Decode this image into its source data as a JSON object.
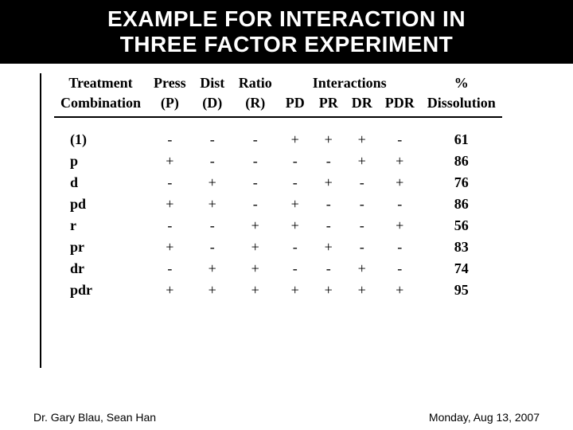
{
  "colors": {
    "title_bg": "#000000",
    "title_fg": "#ffffff",
    "page_bg": "#ffffff",
    "rule": "#000000",
    "text": "#000000"
  },
  "typography": {
    "title_font": "Arial",
    "title_size_pt": 22,
    "header_font": "Times New Roman",
    "header_size_pt": 14,
    "body_font": "Times New Roman",
    "body_size_pt": 14,
    "footer_font": "Arial",
    "footer_size_pt": 10
  },
  "title": {
    "line1": "EXAMPLE FOR INTERACTION IN",
    "line2": "THREE FACTOR EXPERIMENT"
  },
  "table": {
    "type": "table",
    "header_row1": {
      "treatment": "Treatment",
      "press": "Press",
      "dist": "Dist",
      "ratio": "Ratio",
      "interactions": "Interactions",
      "pct": "%"
    },
    "header_row2": {
      "combination": "Combination",
      "P": "(P)",
      "D": "(D)",
      "R": "(R)",
      "PD": "PD",
      "PR": "PR",
      "DR": "DR",
      "PDR": "PDR",
      "diss": "Dissolution"
    },
    "rows": [
      {
        "label": "(1)",
        "P": "-",
        "D": "-",
        "R": "-",
        "PD": "+",
        "PR": "+",
        "DR": "+",
        "PDR": "-",
        "val": "61"
      },
      {
        "label": "p",
        "P": "+",
        "D": "-",
        "R": "-",
        "PD": "-",
        "PR": "-",
        "DR": "+",
        "PDR": "+",
        "val": "86"
      },
      {
        "label": "d",
        "P": "-",
        "D": "+",
        "R": "-",
        "PD": "-",
        "PR": "+",
        "DR": "-",
        "PDR": "+",
        "val": "76"
      },
      {
        "label": "pd",
        "P": "+",
        "D": "+",
        "R": "-",
        "PD": "+",
        "PR": "-",
        "DR": "-",
        "PDR": "-",
        "val": "86"
      },
      {
        "label": "r",
        "P": "-",
        "D": "-",
        "R": "+",
        "PD": "+",
        "PR": "-",
        "DR": "-",
        "PDR": "+",
        "val": "56"
      },
      {
        "label": "pr",
        "P": "+",
        "D": "-",
        "R": "+",
        "PD": "-",
        "PR": "+",
        "DR": "-",
        "PDR": "-",
        "val": "83"
      },
      {
        "label": "dr",
        "P": "-",
        "D": "+",
        "R": "+",
        "PD": "-",
        "PR": "-",
        "DR": "+",
        "PDR": "-",
        "val": "74"
      },
      {
        "label": "pdr",
        "P": "+",
        "D": "+",
        "R": "+",
        "PD": "+",
        "PR": "+",
        "DR": "+",
        "PDR": "+",
        "val": "95"
      }
    ]
  },
  "footer": {
    "authors": "Dr. Gary Blau, Sean Han",
    "date": "Monday, Aug 13, 2007"
  }
}
